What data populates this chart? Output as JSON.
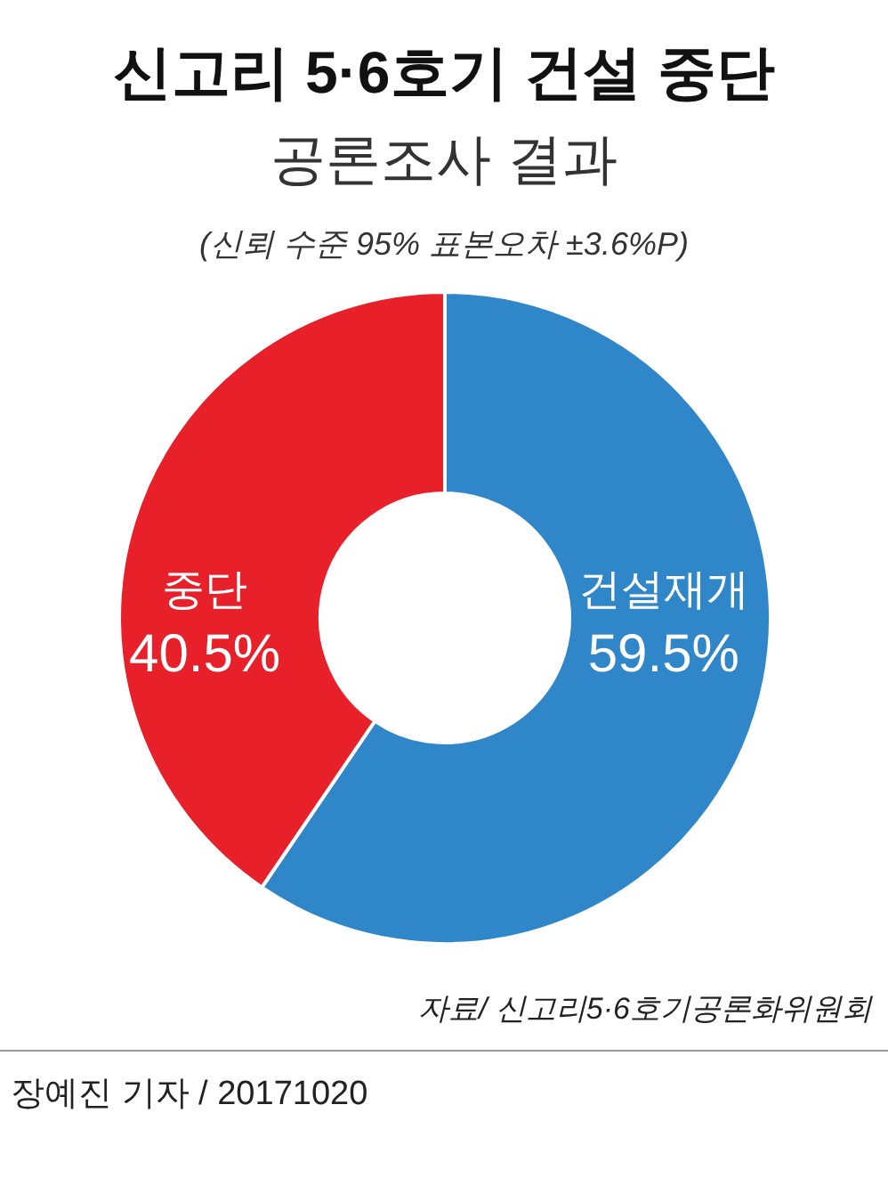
{
  "chart_data": {
    "type": "donut",
    "title": "신고리 5·6호기 건설 중단",
    "subtitle": "공론조사 결과",
    "categories": [
      "건설재개",
      "중단"
    ],
    "values": [
      59.5,
      40.5
    ],
    "colors": [
      "#2f86c8",
      "#e8202a"
    ],
    "value_labels": [
      "59.5%",
      "40.5%"
    ],
    "annotations": [
      "(신뢰 수준 95% 표본오차 ±3.6%P)",
      "자료/ 신고리5·6호기공론화위원회",
      "장예진 기자 / 20171020"
    ]
  }
}
